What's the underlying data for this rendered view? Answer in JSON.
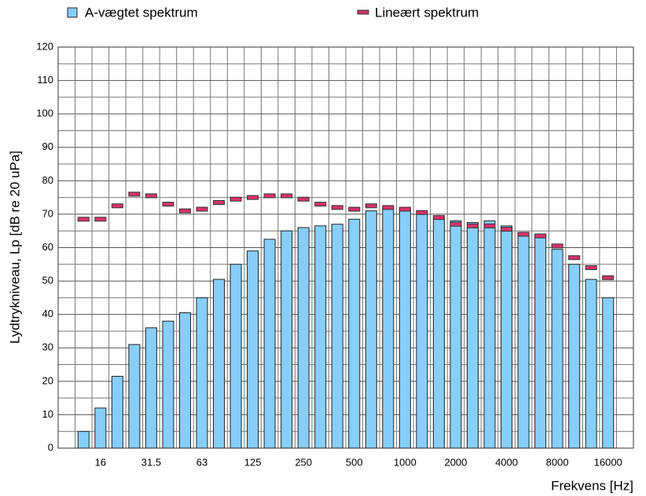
{
  "chart_data": {
    "type": "bar",
    "x_label": "Frekvens [Hz]",
    "y_label": "Lydtrykniveau, Lp [dB re 20 uPa]",
    "categories": [
      null,
      "16",
      null,
      null,
      "31.5",
      null,
      null,
      "63",
      null,
      null,
      "125",
      null,
      null,
      "250",
      null,
      null,
      "500",
      null,
      null,
      "1000",
      null,
      null,
      "2000",
      null,
      null,
      "4000",
      null,
      null,
      "8000",
      null,
      null,
      "16000"
    ],
    "series": [
      {
        "name": "A-vægtet spektrum",
        "color": "#87cefa",
        "marker": "bar",
        "values": [
          5,
          12,
          21.5,
          31,
          36,
          38,
          40.5,
          45,
          50.5,
          55,
          59,
          62.5,
          65,
          66,
          66.5,
          67,
          68.5,
          71,
          72,
          71.5,
          70,
          69,
          68,
          67.5,
          68,
          66.5,
          64.5,
          63.5,
          59.5,
          55,
          50.5,
          45
        ]
      },
      {
        "name": "Lineært spektrum",
        "color": "#d6336c",
        "marker": "dash",
        "values": [
          68.5,
          68.5,
          72.5,
          76,
          75.5,
          73,
          71,
          71.5,
          73.5,
          74.5,
          75,
          75.5,
          75.5,
          74.5,
          73,
          72,
          71.5,
          72.5,
          72,
          71.5,
          70.5,
          69,
          67,
          66.5,
          66.5,
          65.5,
          64,
          63.5,
          60.5,
          57,
          54,
          51
        ]
      }
    ],
    "ylim": [
      0,
      120
    ],
    "yticks": [
      0,
      10,
      20,
      30,
      40,
      50,
      60,
      70,
      80,
      90,
      100,
      110,
      120
    ],
    "grid": true,
    "legend": "top"
  }
}
